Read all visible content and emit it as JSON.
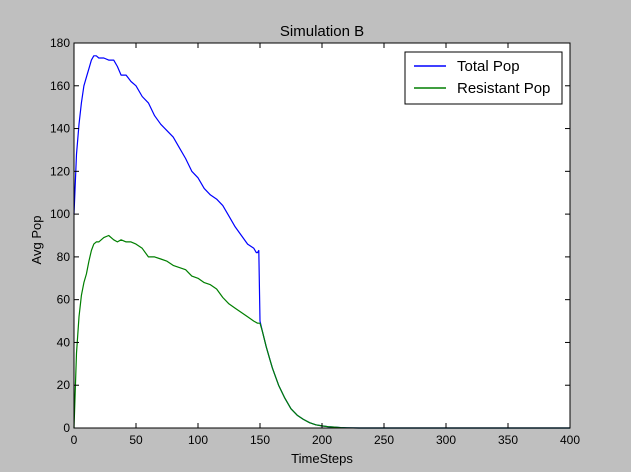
{
  "chart_data": {
    "type": "line",
    "title": "Simulation B",
    "xlabel": "TimeSteps",
    "ylabel": "Avg Pop",
    "xlim": [
      0,
      400
    ],
    "ylim": [
      0,
      180
    ],
    "xticks": [
      0,
      50,
      100,
      150,
      200,
      250,
      300,
      350,
      400
    ],
    "yticks": [
      0,
      20,
      40,
      60,
      80,
      100,
      120,
      140,
      160,
      180
    ],
    "grid": false,
    "legend_position": "top-right",
    "series": [
      {
        "name": "Total Pop",
        "color": "#0000ff",
        "x": [
          0,
          2,
          4,
          6,
          8,
          10,
          12,
          14,
          16,
          18,
          20,
          24,
          28,
          32,
          35,
          38,
          42,
          46,
          50,
          55,
          60,
          65,
          70,
          75,
          80,
          85,
          90,
          95,
          100,
          105,
          110,
          115,
          120,
          125,
          130,
          135,
          140,
          145,
          147,
          148,
          149,
          150,
          152,
          155,
          158,
          160,
          165,
          170,
          175,
          180,
          185,
          190,
          195,
          200,
          205,
          210,
          215,
          220,
          230,
          250,
          300,
          350,
          400
        ],
        "y": [
          100,
          128,
          142,
          152,
          160,
          164,
          168,
          172,
          174,
          174,
          173,
          173,
          172,
          172,
          169,
          165,
          165,
          162,
          160,
          155,
          152,
          146,
          142,
          139,
          136,
          131,
          126,
          120,
          117,
          112,
          109,
          107,
          104,
          99,
          94,
          90,
          86,
          84,
          82,
          82,
          83,
          50,
          45,
          38,
          32,
          28,
          20,
          14,
          9,
          6,
          4,
          2.5,
          1.5,
          1,
          0.6,
          0.4,
          0.2,
          0.1,
          0,
          0,
          0,
          0,
          0
        ]
      },
      {
        "name": "Resistant Pop",
        "color": "#007f00",
        "x": [
          0,
          2,
          4,
          6,
          8,
          10,
          12,
          14,
          16,
          18,
          20,
          24,
          28,
          32,
          35,
          38,
          42,
          46,
          50,
          55,
          60,
          65,
          70,
          75,
          80,
          85,
          90,
          95,
          100,
          105,
          110,
          115,
          120,
          125,
          130,
          135,
          140,
          145,
          148,
          150,
          152,
          155,
          158,
          160,
          165,
          170,
          175,
          180,
          185,
          190,
          195,
          200,
          205,
          210,
          215,
          220,
          230,
          250,
          300,
          350,
          400
        ],
        "y": [
          0,
          35,
          52,
          62,
          68,
          72,
          78,
          83,
          86,
          87,
          87,
          89,
          90,
          88,
          87,
          88,
          87,
          87,
          86,
          84,
          80,
          80,
          79,
          78,
          76,
          75,
          74,
          71,
          70,
          68,
          67,
          65,
          61,
          58,
          56,
          54,
          52,
          50,
          49,
          49,
          45,
          38,
          32,
          28,
          20,
          14,
          9,
          6,
          4,
          2.5,
          1.5,
          1,
          0.6,
          0.4,
          0.2,
          0.1,
          0,
          0,
          0,
          0,
          0
        ]
      }
    ]
  }
}
